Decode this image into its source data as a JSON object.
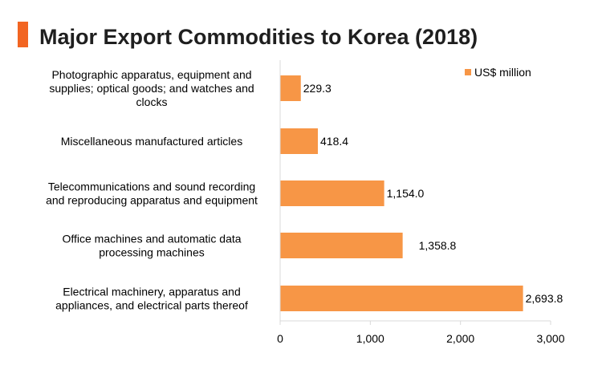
{
  "colors": {
    "accent": "#F26522",
    "bar": "#F79646",
    "axis": "#D9D9D9",
    "text": "#000000",
    "title": "#1F1F1F"
  },
  "chart_data": {
    "type": "bar",
    "orientation": "horizontal",
    "title": "Major Export Commodities to Korea (2018)",
    "xlabel": "",
    "ylabel": "",
    "xlim": [
      0,
      3000
    ],
    "x_ticks": [
      0,
      1000,
      2000,
      3000
    ],
    "x_tick_labels": [
      "0",
      "1,000",
      "2,000",
      "3,000"
    ],
    "grid": false,
    "legend_position": "top-right",
    "categories": [
      [
        "Photographic apparatus, equipment and",
        "supplies; optical goods; and watches and",
        "clocks"
      ],
      [
        "Miscellaneous manufactured articles"
      ],
      [
        "Telecommunications and sound recording",
        "and reproducing apparatus and equipment"
      ],
      [
        "Office machines and automatic data",
        "processing machines"
      ],
      [
        "Electrical machinery, apparatus and",
        "appliances, and electrical parts thereof"
      ]
    ],
    "series": [
      {
        "name": "US$ million",
        "values": [
          229.3,
          418.4,
          1154.0,
          1358.8,
          2693.8
        ],
        "value_labels": [
          "229.3",
          "418.4",
          "1,154.0",
          "1,358.8",
          "2,693.8"
        ]
      }
    ]
  }
}
